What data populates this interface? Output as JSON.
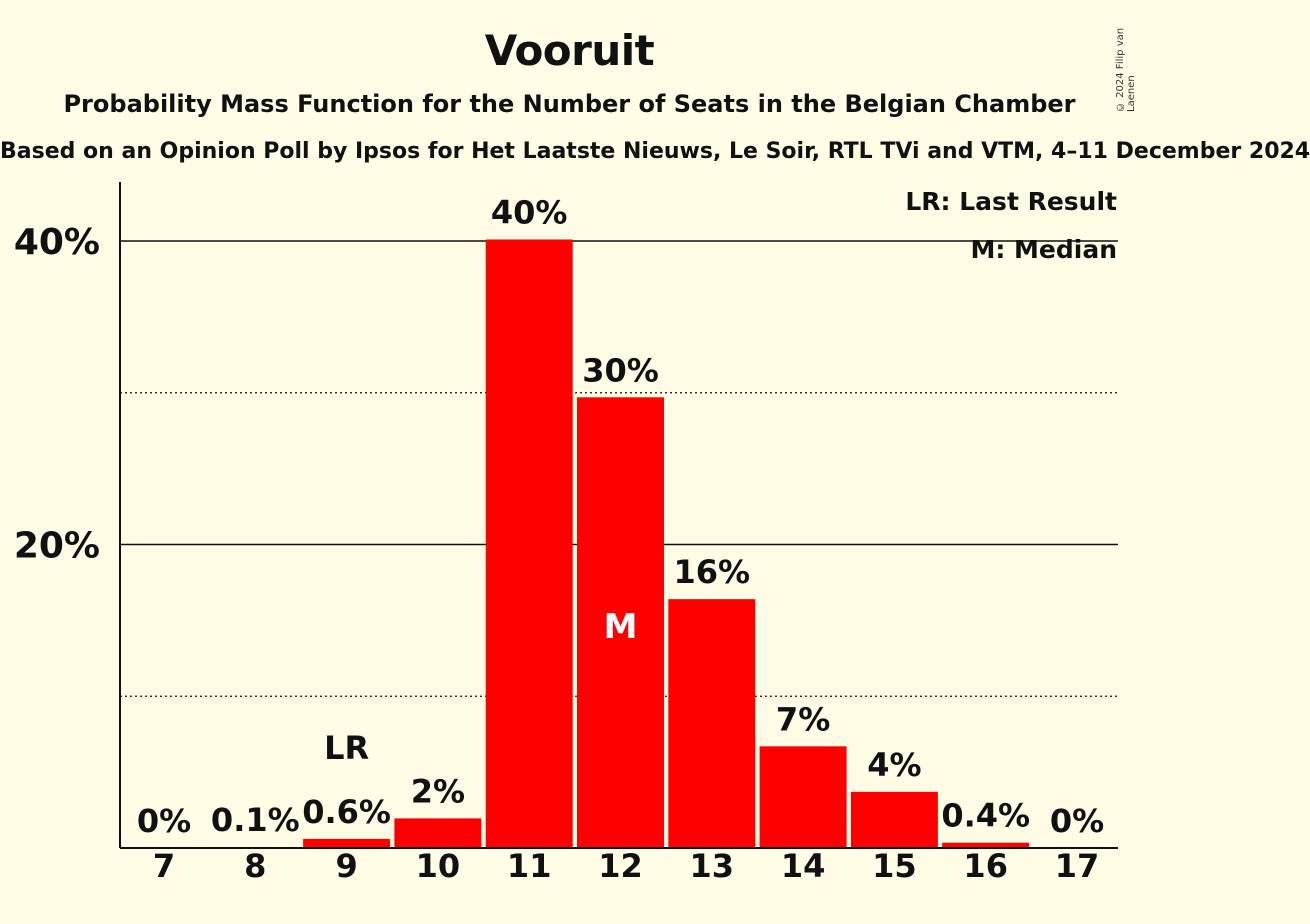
{
  "title": "Vooruit",
  "subtitle": "Probability Mass Function for the Number of Seats in the Belgian Chamber",
  "subsubtitle": "Based on an Opinion Poll by Ipsos for Het Laatste Nieuws, Le Soir, RTL TVi and VTM, 4–11 December 2024",
  "copyright": "© 2024 Filip van Laenen",
  "legend": {
    "last_result": "LR: Last Result",
    "median": "M: Median"
  },
  "chart_data": {
    "type": "bar",
    "categories": [
      "7",
      "8",
      "9",
      "10",
      "11",
      "12",
      "13",
      "14",
      "15",
      "16",
      "17"
    ],
    "values": [
      0,
      0.1,
      0.6,
      2,
      40,
      30,
      16,
      7,
      4,
      0.4,
      0
    ],
    "display_values": [
      0,
      0.06,
      0.6,
      1.95,
      40.1,
      29.7,
      16.4,
      6.7,
      3.7,
      0.35,
      0
    ],
    "data_labels": [
      "0%",
      "0.1%",
      "0.6%",
      "2%",
      "40%",
      "30%",
      "16%",
      "7%",
      "4%",
      "0.4%",
      "0%"
    ],
    "y_tick_labels": [
      "20%",
      "40%"
    ],
    "y_ticks": [
      20,
      40
    ],
    "y_minor_ticks": [
      10,
      30
    ],
    "ylim": [
      0,
      44
    ],
    "last_result_category": "9",
    "last_result_marker": "LR",
    "median_category": "12",
    "median_marker": "M",
    "bar_color": "#ff0000",
    "legend_position": "top-right"
  }
}
